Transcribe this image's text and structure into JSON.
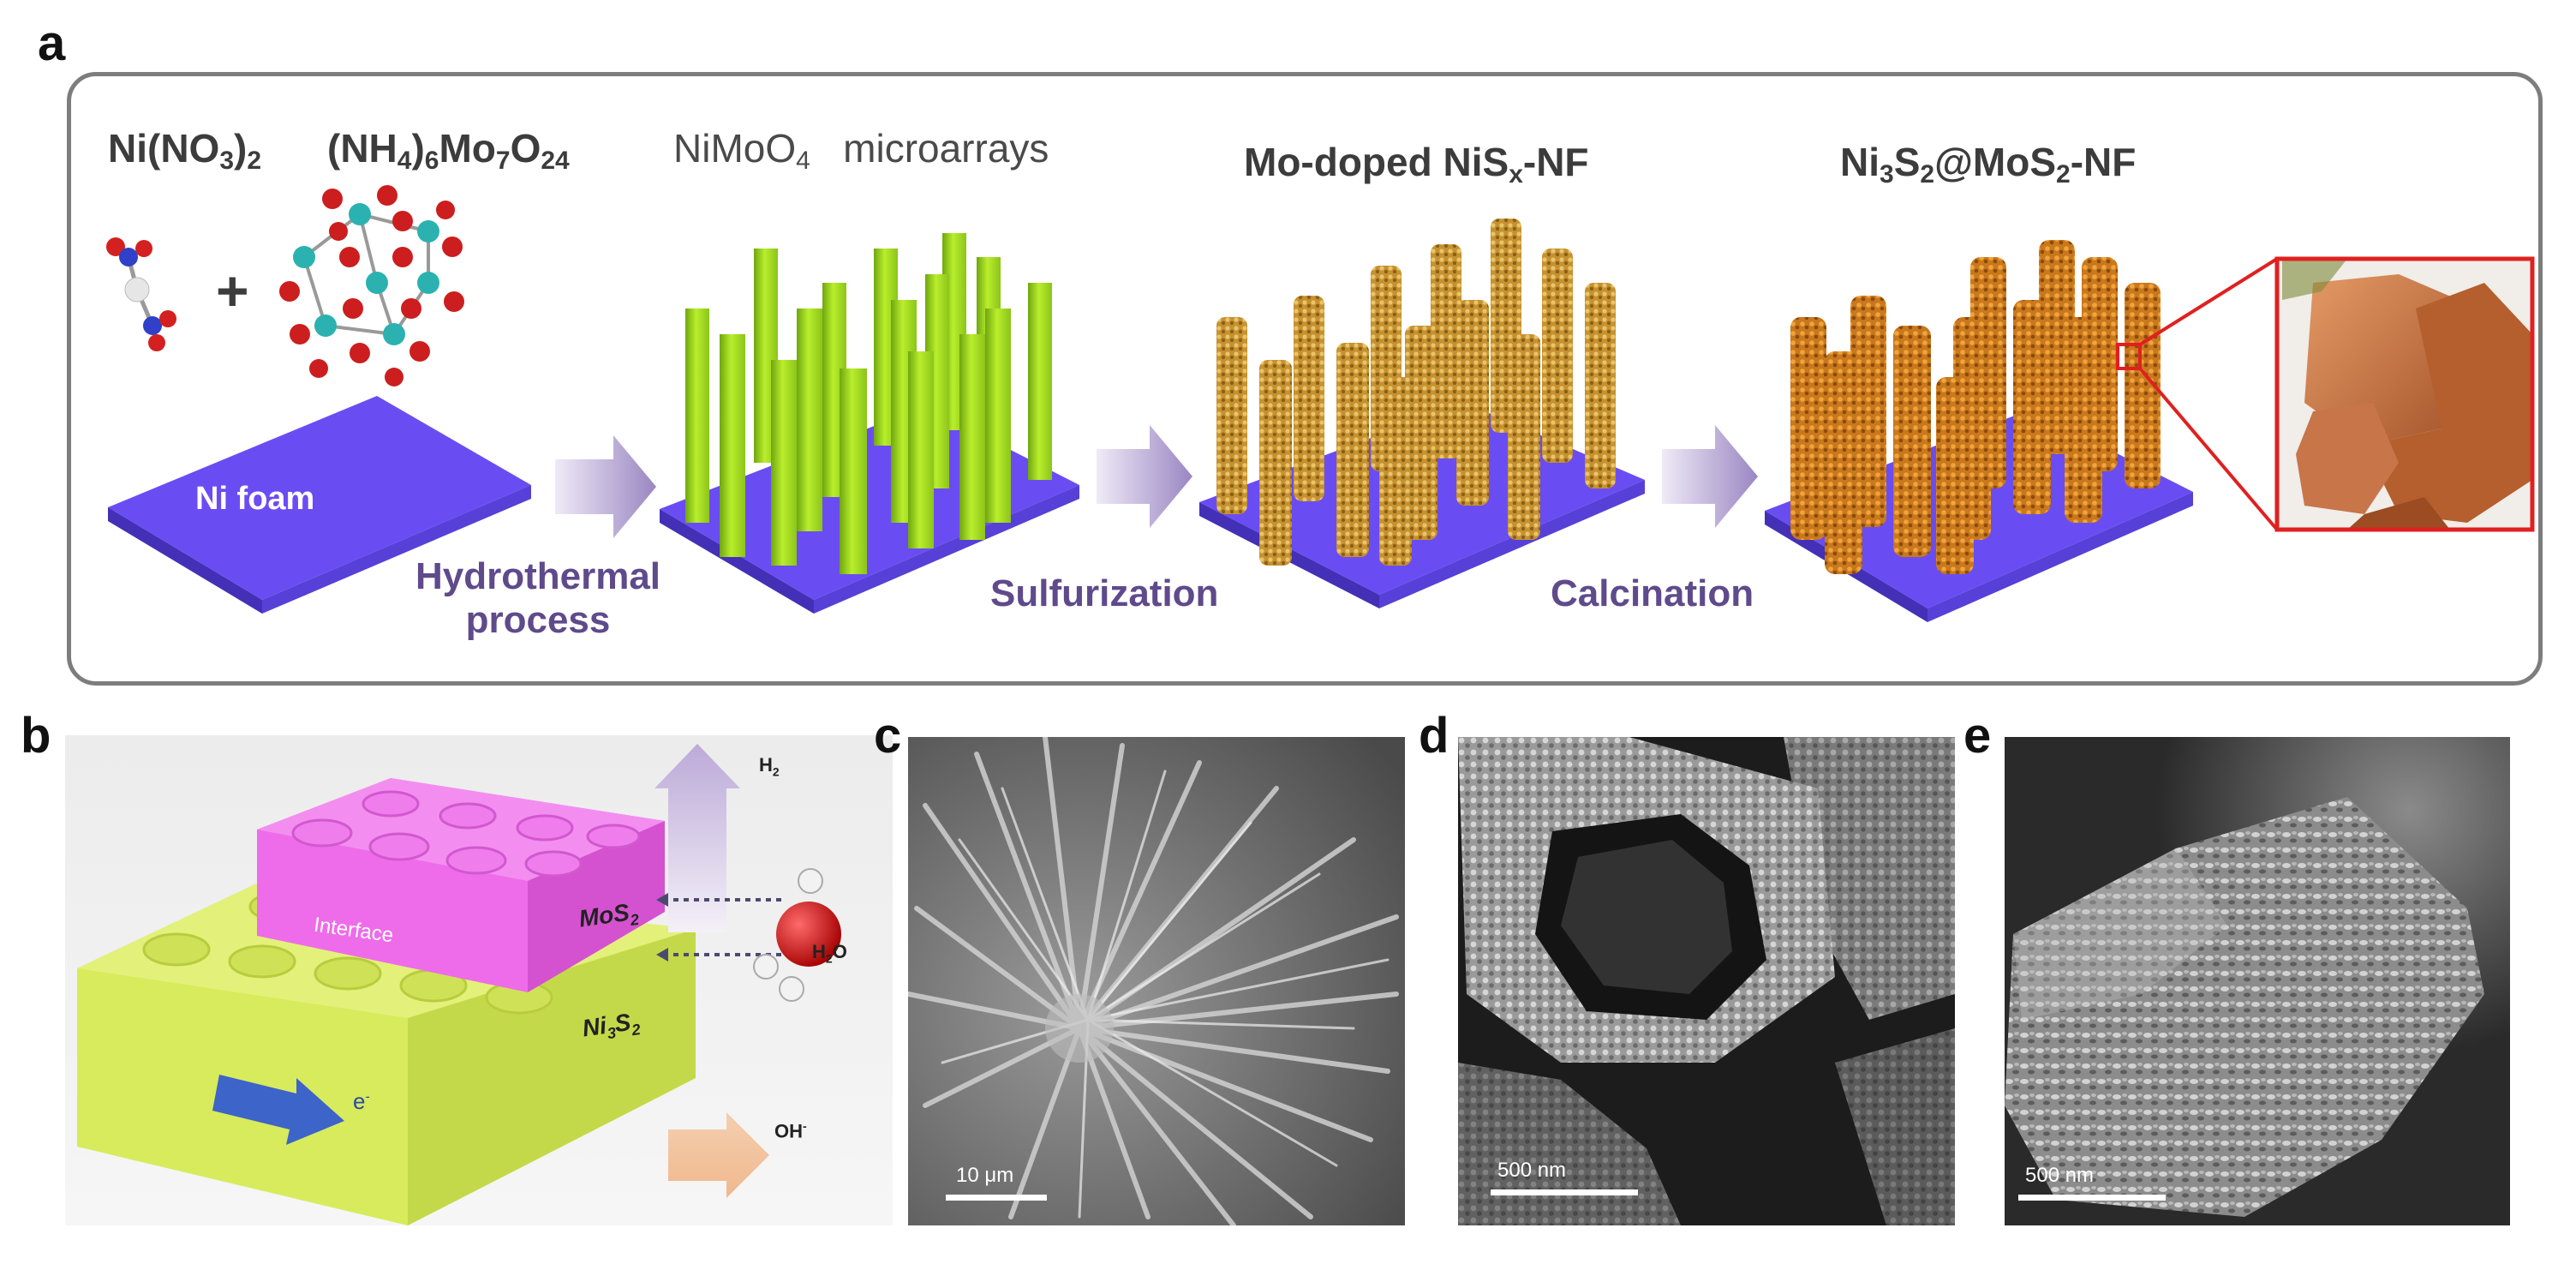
{
  "panels": {
    "a": "a",
    "b": "b",
    "c": "c",
    "d": "d",
    "e": "e"
  },
  "panel_a": {
    "precursor1": "Ni(NO",
    "precursor1_sub": "3",
    "precursor1_end": ")",
    "precursor1_sub2": "2",
    "precursor2_parts": [
      "(NH",
      "4",
      ")",
      "6",
      "Mo",
      "7",
      "O",
      "24"
    ],
    "plus": "+",
    "substrate": "Ni foam",
    "stage1_title_a": "NiMoO",
    "stage1_title_sub": "4",
    "stage1_title_b": "microarrays",
    "stage2_title_a": "Mo-doped NiS",
    "stage2_title_sub": "x",
    "stage2_title_b": "-NF",
    "stage3_parts": [
      "Ni",
      "3",
      "S",
      "2",
      "@MoS",
      "2",
      "-NF"
    ],
    "step1_line1": "Hydrothermal",
    "step1_line2": "process",
    "step2": "Sulfurization",
    "step3": "Calcination"
  },
  "panel_b": {
    "h2": "H",
    "h2_sub": "2",
    "h2o": "H",
    "h2o_sub": "2",
    "h2o_end": "O",
    "oh": "OH",
    "oh_sup": "-",
    "interface": "Interface",
    "mos2": "MoS",
    "mos2_sub": "2",
    "ni3s2_a": "Ni",
    "ni3s2_sub1": "3",
    "ni3s2_b": "S",
    "ni3s2_sub2": "2",
    "electron": "e",
    "electron_sup": "-"
  },
  "panel_c": {
    "scale": "10 μm"
  },
  "panel_d": {
    "scale": "500 nm"
  },
  "panel_e": {
    "scale": "500 nm"
  },
  "colors": {
    "foam": "#6a4df2",
    "rod_green": "#a8e01c",
    "rod_gold": "#c4932e",
    "rod_orange": "#d07a1e",
    "arrow": "#a896c8",
    "zoom_box": "#e02020",
    "process_text": "#5f4a8c",
    "lego_top": "#ee6ce9",
    "lego_bottom": "#d7eb5c"
  }
}
